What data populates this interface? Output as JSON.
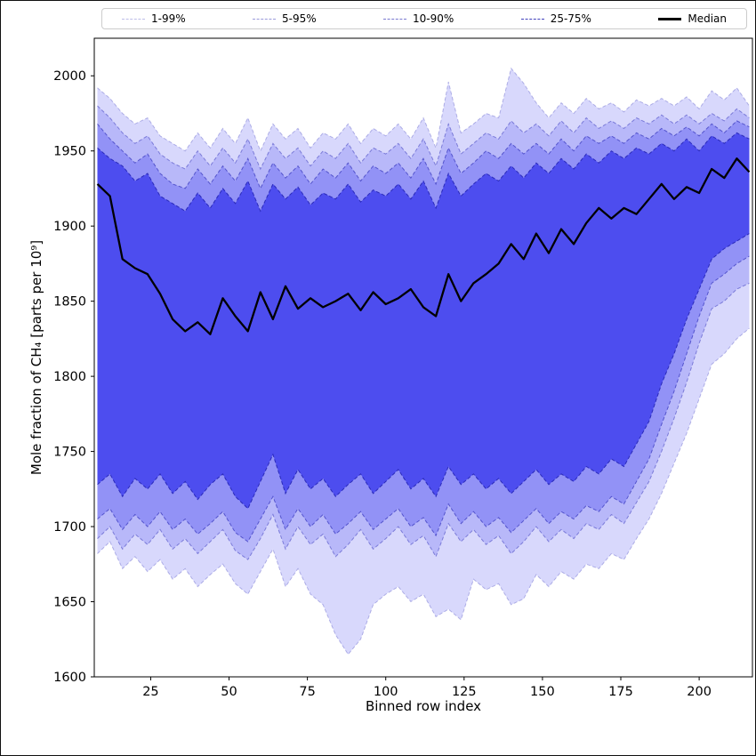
{
  "figure": {
    "background": "#ffffff",
    "frame_color": "#000000"
  },
  "chart_data": {
    "type": "area",
    "title": "",
    "xlabel": "Binned row index",
    "ylabel": "Mole fraction of CH₄ [parts per 10⁹]",
    "xlim": [
      7,
      217
    ],
    "ylim": [
      1600,
      2025
    ],
    "xticks": [
      25,
      50,
      75,
      100,
      125,
      150,
      175,
      200
    ],
    "yticks": [
      1600,
      1650,
      1700,
      1750,
      1800,
      1850,
      1900,
      1950,
      2000
    ],
    "grid": false,
    "legend": {
      "position": "top",
      "entries": [
        "1-99%",
        "5-95%",
        "10-90%",
        "25-75%",
        "Median"
      ]
    },
    "colors": {
      "band_fill": "#3c3cee",
      "band_fill_alphas": [
        0.2,
        0.2,
        0.3,
        0.8
      ],
      "band_edge": "#2020b0",
      "band_edge_alphas": [
        0.3,
        0.45,
        0.6,
        0.85
      ],
      "median": "#000000"
    },
    "x": [
      8,
      12,
      16,
      20,
      24,
      28,
      32,
      36,
      40,
      44,
      48,
      52,
      56,
      60,
      64,
      68,
      72,
      76,
      80,
      84,
      88,
      92,
      96,
      100,
      104,
      108,
      112,
      116,
      120,
      124,
      128,
      132,
      136,
      140,
      144,
      148,
      152,
      156,
      160,
      164,
      168,
      172,
      176,
      180,
      184,
      188,
      192,
      196,
      200,
      204,
      208,
      212,
      216
    ],
    "series": [
      {
        "name": "1-99%",
        "type": "band",
        "upper": [
          1992,
          1985,
          1975,
          1968,
          1972,
          1960,
          1955,
          1950,
          1962,
          1952,
          1965,
          1955,
          1972,
          1950,
          1968,
          1958,
          1965,
          1952,
          1962,
          1958,
          1968,
          1955,
          1965,
          1960,
          1968,
          1958,
          1972,
          1952,
          1996,
          1962,
          1968,
          1975,
          1972,
          2005,
          1995,
          1982,
          1972,
          1982,
          1975,
          1985,
          1978,
          1982,
          1976,
          1984,
          1980,
          1985,
          1980,
          1986,
          1978,
          1990,
          1984,
          1992,
          1980
        ],
        "lower": [
          1682,
          1690,
          1672,
          1680,
          1670,
          1678,
          1665,
          1672,
          1660,
          1668,
          1675,
          1662,
          1655,
          1670,
          1685,
          1660,
          1672,
          1655,
          1648,
          1628,
          1615,
          1625,
          1648,
          1655,
          1660,
          1650,
          1655,
          1640,
          1645,
          1638,
          1665,
          1658,
          1662,
          1648,
          1652,
          1668,
          1660,
          1670,
          1665,
          1675,
          1672,
          1682,
          1678,
          1692,
          1705,
          1722,
          1742,
          1762,
          1785,
          1808,
          1815,
          1825,
          1832
        ]
      },
      {
        "name": "5-95%",
        "type": "band",
        "upper": [
          1980,
          1972,
          1962,
          1955,
          1960,
          1948,
          1942,
          1938,
          1950,
          1940,
          1952,
          1942,
          1958,
          1938,
          1955,
          1945,
          1952,
          1940,
          1950,
          1945,
          1955,
          1942,
          1952,
          1948,
          1955,
          1945,
          1958,
          1940,
          1968,
          1948,
          1955,
          1962,
          1958,
          1970,
          1962,
          1968,
          1960,
          1970,
          1962,
          1972,
          1965,
          1970,
          1965,
          1972,
          1968,
          1974,
          1968,
          1974,
          1968,
          1975,
          1970,
          1978,
          1972
        ],
        "lower": [
          1692,
          1700,
          1685,
          1695,
          1688,
          1698,
          1685,
          1692,
          1682,
          1690,
          1698,
          1684,
          1678,
          1692,
          1708,
          1685,
          1700,
          1688,
          1695,
          1680,
          1688,
          1698,
          1685,
          1692,
          1700,
          1688,
          1694,
          1680,
          1702,
          1690,
          1698,
          1688,
          1694,
          1682,
          1690,
          1700,
          1690,
          1698,
          1692,
          1702,
          1698,
          1708,
          1702,
          1716,
          1730,
          1750,
          1772,
          1796,
          1822,
          1845,
          1850,
          1858,
          1862
        ]
      },
      {
        "name": "10-90%",
        "type": "band",
        "upper": [
          1968,
          1958,
          1950,
          1942,
          1948,
          1935,
          1928,
          1925,
          1938,
          1928,
          1940,
          1930,
          1945,
          1925,
          1942,
          1932,
          1940,
          1928,
          1938,
          1932,
          1942,
          1930,
          1940,
          1935,
          1942,
          1932,
          1945,
          1928,
          1952,
          1935,
          1942,
          1950,
          1945,
          1955,
          1948,
          1955,
          1948,
          1958,
          1950,
          1960,
          1955,
          1960,
          1955,
          1962,
          1958,
          1965,
          1960,
          1966,
          1960,
          1968,
          1962,
          1970,
          1966
        ],
        "lower": [
          1705,
          1712,
          1698,
          1708,
          1700,
          1710,
          1698,
          1705,
          1695,
          1702,
          1710,
          1696,
          1690,
          1705,
          1720,
          1698,
          1712,
          1700,
          1708,
          1695,
          1702,
          1710,
          1698,
          1705,
          1712,
          1700,
          1706,
          1694,
          1715,
          1702,
          1710,
          1700,
          1706,
          1696,
          1704,
          1712,
          1702,
          1710,
          1705,
          1714,
          1710,
          1720,
          1715,
          1730,
          1745,
          1768,
          1790,
          1815,
          1840,
          1862,
          1868,
          1875,
          1880
        ]
      },
      {
        "name": "25-75%",
        "type": "band",
        "upper": [
          1952,
          1945,
          1940,
          1930,
          1935,
          1920,
          1915,
          1910,
          1922,
          1912,
          1925,
          1915,
          1930,
          1910,
          1928,
          1918,
          1926,
          1914,
          1922,
          1918,
          1928,
          1916,
          1924,
          1920,
          1928,
          1918,
          1930,
          1912,
          1935,
          1920,
          1928,
          1935,
          1930,
          1940,
          1932,
          1942,
          1935,
          1945,
          1938,
          1948,
          1942,
          1950,
          1945,
          1952,
          1948,
          1955,
          1950,
          1958,
          1950,
          1960,
          1955,
          1962,
          1958
        ],
        "lower": [
          1728,
          1735,
          1720,
          1732,
          1725,
          1735,
          1722,
          1730,
          1718,
          1728,
          1735,
          1720,
          1712,
          1730,
          1748,
          1722,
          1738,
          1725,
          1732,
          1720,
          1728,
          1735,
          1722,
          1730,
          1738,
          1725,
          1732,
          1720,
          1740,
          1728,
          1735,
          1725,
          1732,
          1722,
          1730,
          1738,
          1728,
          1735,
          1730,
          1740,
          1735,
          1745,
          1740,
          1755,
          1770,
          1795,
          1815,
          1838,
          1858,
          1878,
          1885,
          1890,
          1895
        ]
      },
      {
        "name": "Median",
        "type": "line",
        "values": [
          1928,
          1920,
          1878,
          1872,
          1868,
          1855,
          1838,
          1830,
          1836,
          1828,
          1852,
          1840,
          1830,
          1856,
          1838,
          1860,
          1845,
          1852,
          1846,
          1850,
          1855,
          1844,
          1856,
          1848,
          1852,
          1858,
          1846,
          1840,
          1868,
          1850,
          1862,
          1868,
          1875,
          1888,
          1878,
          1895,
          1882,
          1898,
          1888,
          1902,
          1912,
          1905,
          1912,
          1908,
          1918,
          1928,
          1918,
          1926,
          1922,
          1938,
          1932,
          1945,
          1936
        ]
      }
    ]
  }
}
